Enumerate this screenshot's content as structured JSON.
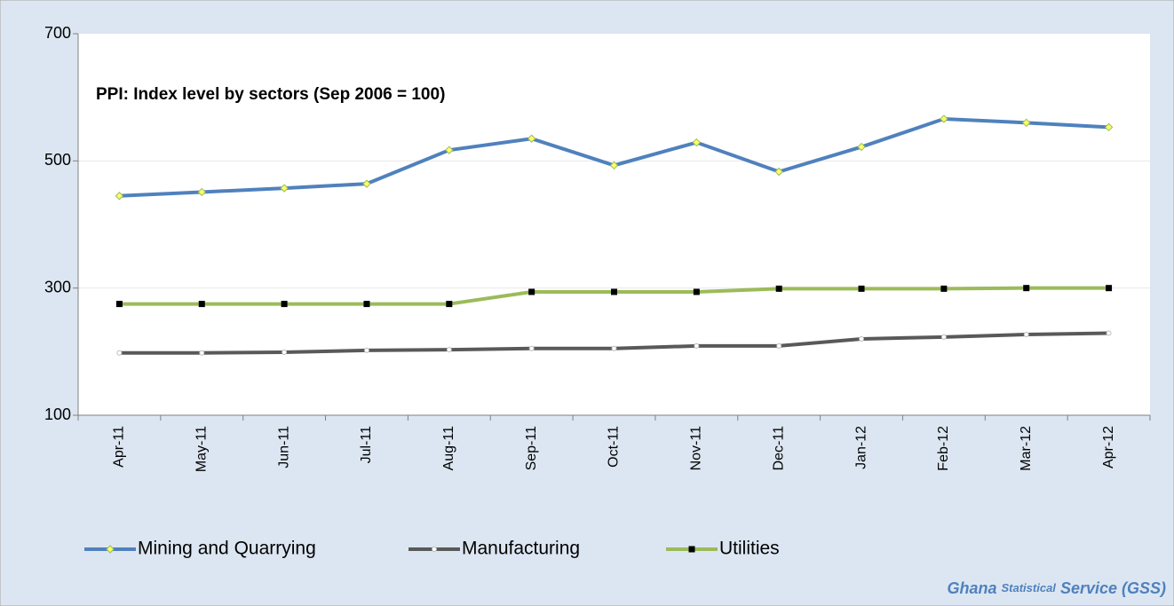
{
  "chart_data": {
    "type": "line",
    "title": "PPI:  Index level by sectors  (Sep 2006 = 100)",
    "source": [
      "Ghana",
      "Statistical",
      "Service (GSS)"
    ],
    "categories": [
      "Apr-11",
      "May-11",
      "Jun-11",
      "Jul-11",
      "Aug-11",
      "Sep-11",
      "Oct-11",
      "Nov-11",
      "Dec-11",
      "Jan-12",
      "Feb-12",
      "Mar-12",
      "Apr-12"
    ],
    "series": [
      {
        "name": "Mining and Quarrying",
        "color": "#4f81bd",
        "values": [
          445,
          451,
          457,
          464,
          517,
          535,
          493,
          529,
          483,
          522,
          566,
          560,
          553
        ]
      },
      {
        "name": "Manufacturing",
        "color": "#595959",
        "values": [
          198,
          198,
          199,
          202,
          203,
          205,
          205,
          209,
          209,
          220,
          223,
          227,
          229
        ]
      },
      {
        "name": "Utilities",
        "color": "#9bbb59",
        "values": [
          275,
          275,
          275,
          275,
          275,
          294,
          294,
          294,
          299,
          299,
          299,
          300,
          300
        ]
      }
    ],
    "ylim": [
      100,
      700
    ],
    "yticks": [
      100,
      300,
      500,
      700
    ],
    "grid": true
  }
}
